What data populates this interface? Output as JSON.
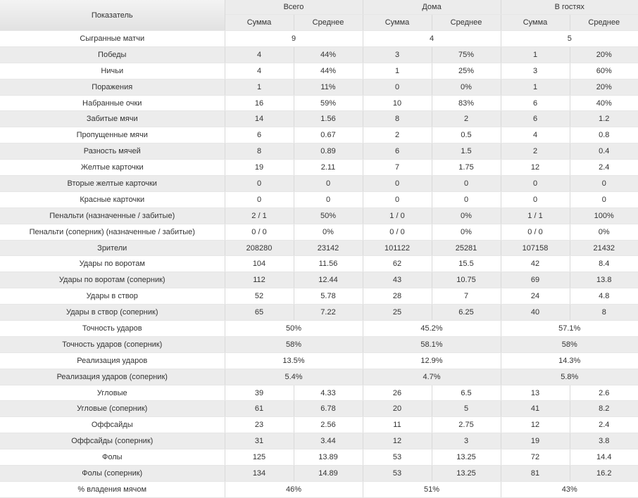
{
  "header": {
    "label": "Показатель",
    "groups": [
      "Всего",
      "Дома",
      "В гостях"
    ],
    "subheads": [
      "Сумма",
      "Среднее"
    ]
  },
  "rows": [
    {
      "label": "Сыгранные матчи",
      "cells": [
        "9",
        "4",
        "5"
      ]
    },
    {
      "label": "Победы",
      "cells": [
        "4",
        "44%",
        "3",
        "75%",
        "1",
        "20%"
      ]
    },
    {
      "label": "Ничьи",
      "cells": [
        "4",
        "44%",
        "1",
        "25%",
        "3",
        "60%"
      ]
    },
    {
      "label": "Поражения",
      "cells": [
        "1",
        "11%",
        "0",
        "0%",
        "1",
        "20%"
      ]
    },
    {
      "label": "Набранные очки",
      "cells": [
        "16",
        "59%",
        "10",
        "83%",
        "6",
        "40%"
      ]
    },
    {
      "label": "Забитые мячи",
      "cells": [
        "14",
        "1.56",
        "8",
        "2",
        "6",
        "1.2"
      ]
    },
    {
      "label": "Пропущенные мячи",
      "cells": [
        "6",
        "0.67",
        "2",
        "0.5",
        "4",
        "0.8"
      ]
    },
    {
      "label": "Разность мячей",
      "cells": [
        "8",
        "0.89",
        "6",
        "1.5",
        "2",
        "0.4"
      ]
    },
    {
      "label": "Желтые карточки",
      "cells": [
        "19",
        "2.11",
        "7",
        "1.75",
        "12",
        "2.4"
      ]
    },
    {
      "label": "Вторые желтые карточки",
      "cells": [
        "0",
        "0",
        "0",
        "0",
        "0",
        "0"
      ]
    },
    {
      "label": "Красные карточки",
      "cells": [
        "0",
        "0",
        "0",
        "0",
        "0",
        "0"
      ]
    },
    {
      "label": "Пенальти (назначенные / забитые)",
      "cells": [
        "2 / 1",
        "50%",
        "1 / 0",
        "0%",
        "1 / 1",
        "100%"
      ]
    },
    {
      "label": "Пенальти (соперник) (назначенные / забитые)",
      "cells": [
        "0 / 0",
        "0%",
        "0 / 0",
        "0%",
        "0 / 0",
        "0%"
      ]
    },
    {
      "label": "Зрители",
      "cells": [
        "208280",
        "23142",
        "101122",
        "25281",
        "107158",
        "21432"
      ]
    },
    {
      "label": "Удары по воротам",
      "cells": [
        "104",
        "11.56",
        "62",
        "15.5",
        "42",
        "8.4"
      ]
    },
    {
      "label": "Удары по воротам (соперник)",
      "cells": [
        "112",
        "12.44",
        "43",
        "10.75",
        "69",
        "13.8"
      ]
    },
    {
      "label": "Удары в створ",
      "cells": [
        "52",
        "5.78",
        "28",
        "7",
        "24",
        "4.8"
      ]
    },
    {
      "label": "Удары в створ (соперник)",
      "cells": [
        "65",
        "7.22",
        "25",
        "6.25",
        "40",
        "8"
      ]
    },
    {
      "label": "Точность ударов",
      "cells": [
        "50%",
        "45.2%",
        "57.1%"
      ]
    },
    {
      "label": "Точность ударов (соперник)",
      "cells": [
        "58%",
        "58.1%",
        "58%"
      ]
    },
    {
      "label": "Реализация ударов",
      "cells": [
        "13.5%",
        "12.9%",
        "14.3%"
      ]
    },
    {
      "label": "Реализация ударов (соперник)",
      "cells": [
        "5.4%",
        "4.7%",
        "5.8%"
      ]
    },
    {
      "label": "Угловые",
      "cells": [
        "39",
        "4.33",
        "26",
        "6.5",
        "13",
        "2.6"
      ]
    },
    {
      "label": "Угловые (соперник)",
      "cells": [
        "61",
        "6.78",
        "20",
        "5",
        "41",
        "8.2"
      ]
    },
    {
      "label": "Оффсайды",
      "cells": [
        "23",
        "2.56",
        "11",
        "2.75",
        "12",
        "2.4"
      ]
    },
    {
      "label": "Оффсайды (соперник)",
      "cells": [
        "31",
        "3.44",
        "12",
        "3",
        "19",
        "3.8"
      ]
    },
    {
      "label": "Фолы",
      "cells": [
        "125",
        "13.89",
        "53",
        "13.25",
        "72",
        "14.4"
      ]
    },
    {
      "label": "Фолы (соперник)",
      "cells": [
        "134",
        "14.89",
        "53",
        "13.25",
        "81",
        "16.2"
      ]
    },
    {
      "label": "% владения мячом",
      "cells": [
        "46%",
        "51%",
        "43%"
      ]
    }
  ]
}
